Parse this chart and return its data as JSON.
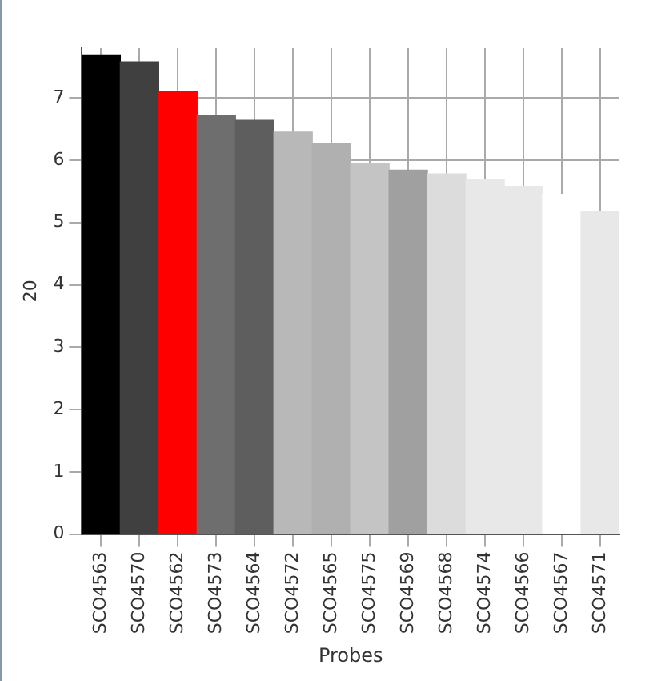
{
  "chart_data": {
    "type": "bar",
    "xlabel": "Probes",
    "ylabel": "20",
    "categories": [
      "SCO4563",
      "SCO4570",
      "SCO4562",
      "SCO4573",
      "SCO4564",
      "SCO4572",
      "SCO4565",
      "SCO4575",
      "SCO4569",
      "SCO4568",
      "SCO4574",
      "SCO4566",
      "SCO4567",
      "SCO4571"
    ],
    "values": [
      7.68,
      7.58,
      7.11,
      6.71,
      6.64,
      6.45,
      6.27,
      5.95,
      5.84,
      5.78,
      5.69,
      5.58,
      5.45,
      5.18
    ],
    "colors": [
      "#000000",
      "#404040",
      "#ff0000",
      "#6e6e6e",
      "#5e5e5e",
      "#b8b8b8",
      "#b0b0b0",
      "#c4c4c4",
      "#a0a0a0",
      "#dcdcdc",
      "#e8e8e8",
      "#e8e8e8",
      "#ffffff",
      "#e8e8e8"
    ],
    "ylim": [
      0,
      7.8
    ],
    "yticks": [
      0,
      1,
      2,
      3,
      4,
      5,
      6,
      7
    ],
    "grid": true,
    "legend": false
  }
}
